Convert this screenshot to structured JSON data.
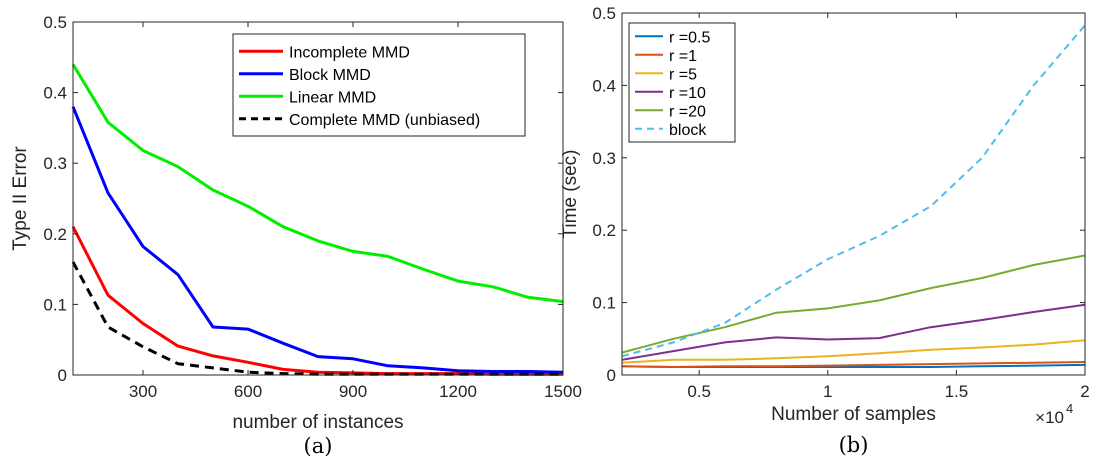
{
  "chart_data": [
    {
      "type": "line",
      "caption": "(a)",
      "xlabel": "number of instances",
      "ylabel": "Type II Error",
      "xlim": [
        100,
        1500
      ],
      "ylim": [
        0,
        0.5
      ],
      "xticks": [
        300,
        600,
        900,
        1200,
        1500
      ],
      "yticks": [
        0,
        0.1,
        0.2,
        0.3,
        0.4,
        0.5
      ],
      "grid": false,
      "legend": "top-right",
      "x": [
        100,
        200,
        300,
        400,
        500,
        600,
        700,
        800,
        900,
        1000,
        1100,
        1200,
        1300,
        1400,
        1500
      ],
      "series": [
        {
          "name": "Incomplete MMD",
          "color": "#ff0000",
          "dash": "solid",
          "values": [
            0.21,
            0.113,
            0.073,
            0.041,
            0.027,
            0.018,
            0.008,
            0.004,
            0.003,
            0.002,
            0.002,
            0.002,
            0.001,
            0.001,
            0.001
          ]
        },
        {
          "name": "Block MMD",
          "color": "#0000ff",
          "dash": "solid",
          "values": [
            0.38,
            0.258,
            0.182,
            0.142,
            0.068,
            0.065,
            0.045,
            0.026,
            0.023,
            0.013,
            0.01,
            0.006,
            0.005,
            0.005,
            0.004
          ]
        },
        {
          "name": "Linear MMD",
          "color": "#00ee00",
          "dash": "solid",
          "values": [
            0.44,
            0.358,
            0.318,
            0.295,
            0.262,
            0.239,
            0.21,
            0.19,
            0.175,
            0.168,
            0.15,
            0.133,
            0.125,
            0.11,
            0.104
          ]
        },
        {
          "name": "Complete MMD (unbiased)",
          "color": "#000000",
          "dash": "dashed",
          "values": [
            0.16,
            0.068,
            0.04,
            0.016,
            0.01,
            0.004,
            0.002,
            0.001,
            0.001,
            0.001,
            0.001,
            0.001,
            0.001,
            0.001,
            0.001
          ]
        }
      ]
    },
    {
      "type": "line",
      "caption": "(b)",
      "xlabel": "Number of samples",
      "ylabel": "Time (sec)",
      "x_multiplier": "×10",
      "x_multiplier_exp": "4",
      "xlim": [
        0.2,
        2
      ],
      "ylim": [
        0,
        0.5
      ],
      "xticks": [
        0.5,
        1,
        1.5,
        2
      ],
      "yticks": [
        0,
        0.1,
        0.2,
        0.3,
        0.4,
        0.5
      ],
      "grid": false,
      "legend": "top-left",
      "x": [
        0.2,
        0.4,
        0.6,
        0.8,
        1.0,
        1.2,
        1.4,
        1.6,
        1.8,
        2.0
      ],
      "series": [
        {
          "name": "r =0.5",
          "color": "#0072bd",
          "dash": "solid",
          "values": [
            0.012,
            0.011,
            0.011,
            0.011,
            0.011,
            0.011,
            0.011,
            0.012,
            0.013,
            0.014
          ]
        },
        {
          "name": "r =1",
          "color": "#d95319",
          "dash": "solid",
          "values": [
            0.012,
            0.011,
            0.012,
            0.012,
            0.013,
            0.014,
            0.015,
            0.016,
            0.017,
            0.018
          ]
        },
        {
          "name": "r =5",
          "color": "#edb120",
          "dash": "solid",
          "values": [
            0.017,
            0.021,
            0.021,
            0.023,
            0.026,
            0.03,
            0.035,
            0.038,
            0.042,
            0.048
          ]
        },
        {
          "name": "r =10",
          "color": "#7e2f8e",
          "dash": "solid",
          "values": [
            0.021,
            0.033,
            0.045,
            0.052,
            0.049,
            0.051,
            0.066,
            0.076,
            0.087,
            0.097
          ]
        },
        {
          "name": "r =20",
          "color": "#77ac30",
          "dash": "solid",
          "values": [
            0.031,
            0.05,
            0.066,
            0.086,
            0.092,
            0.103,
            0.12,
            0.134,
            0.152,
            0.165
          ]
        },
        {
          "name": "block",
          "color": "#4dbeee",
          "dash": "dashed",
          "values": [
            0.026,
            0.045,
            0.072,
            0.118,
            0.16,
            0.192,
            0.233,
            0.3,
            0.4,
            0.483
          ]
        }
      ]
    }
  ]
}
